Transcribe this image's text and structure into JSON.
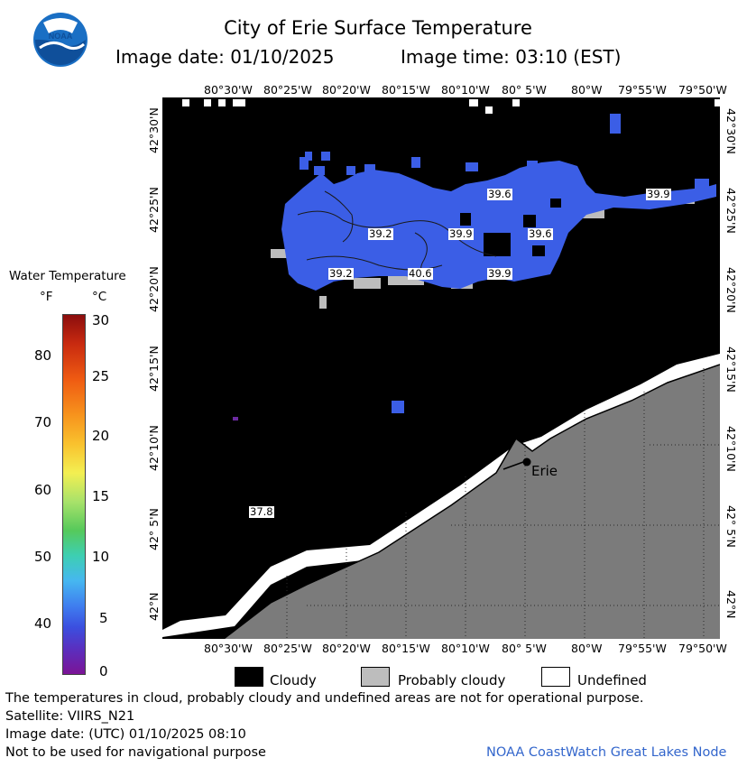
{
  "header": {
    "title": "City of Erie Surface Temperature",
    "image_date": "Image date: 01/10/2025",
    "image_time": "Image time: 03:10 (EST)"
  },
  "map": {
    "longitude_ticks": [
      "80°30'W",
      "80°25'W",
      "80°20'W",
      "80°15'W",
      "80°10'W",
      "80° 5'W",
      "80°W",
      "79°55'W",
      "79°50'W"
    ],
    "latitude_ticks": [
      "42°30'N",
      "42°25'N",
      "42°20'N",
      "42°15'N",
      "42°10'N",
      "42° 5'N",
      "42°N"
    ],
    "city": "Erie",
    "temperature_labels": [
      "39.6",
      "39.9",
      "39.2",
      "39.9",
      "39.6",
      "39.2",
      "40.6",
      "39.9",
      "37.8"
    ],
    "colors": {
      "water_cold": "#3b5ee6",
      "cloud": "#000000",
      "land": "#7b7b7b",
      "probably_cloudy": "#bdbdbd",
      "undefined": "#ffffff"
    }
  },
  "colorbar": {
    "title": "Water Temperature",
    "unit_f": "°F",
    "unit_c": "°C",
    "f_ticks": [
      "80",
      "70",
      "60",
      "50",
      "40"
    ],
    "c_ticks": [
      "30",
      "25",
      "20",
      "15",
      "10",
      "5",
      "0"
    ]
  },
  "legend": {
    "cloudy": "Cloudy",
    "probably_cloudy": "Probably cloudy",
    "undefined": "Undefined"
  },
  "footer": {
    "line1": "The temperatures in cloud, probably cloudy and undefined areas are not for operational purpose.",
    "line2": "Satellite: VIIRS_N21",
    "line3": "Image date: (UTC) 01/10/2025  08:10",
    "line4": "Not to be used for navigational purpose",
    "credit": "NOAA CoastWatch Great Lakes Node"
  }
}
